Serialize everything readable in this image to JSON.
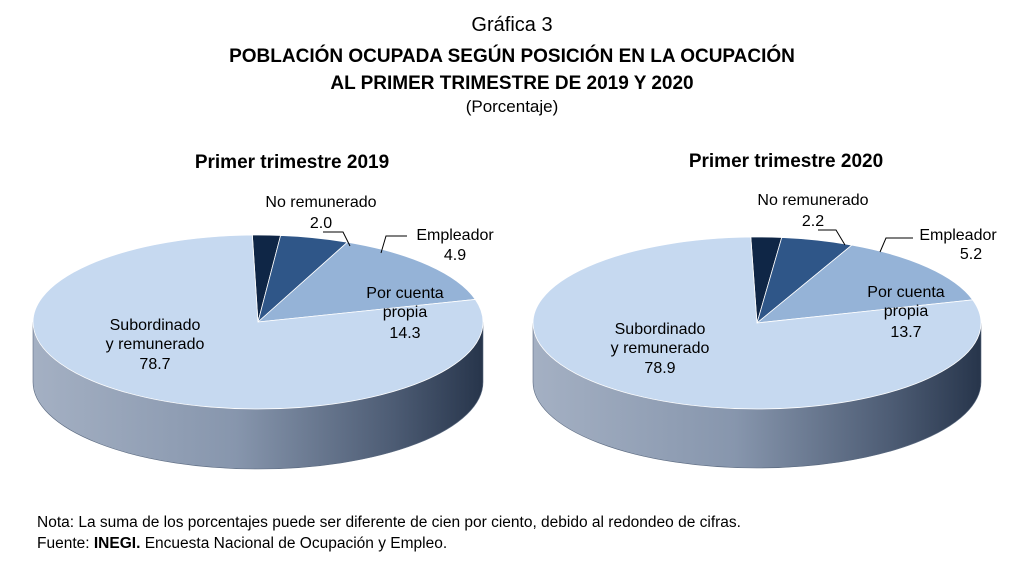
{
  "header": {
    "label": "Gráfica 3",
    "title_line1": "POBLACIÓN OCUPADA SEGÚN POSICIÓN EN LA OCUPACIÓN",
    "title_line2": "AL PRIMER TRIMESTRE DE 2019 Y 2020",
    "subtitle": "(Porcentaje)"
  },
  "chart_data": [
    {
      "type": "pie",
      "title": "Primer trimestre  2019",
      "slices": [
        {
          "name": "No remunerado",
          "label_lines": [
            "No remunerado"
          ],
          "value": 2.0,
          "value_text": "2.0",
          "color": "#0f2646"
        },
        {
          "name": "Empleador",
          "label_lines": [
            "Empleador"
          ],
          "value": 4.9,
          "value_text": "4.9",
          "color": "#2f5688"
        },
        {
          "name": "Por cuenta propia",
          "label_lines": [
            "Por cuenta",
            "propia"
          ],
          "value": 14.3,
          "value_text": "14.3",
          "color": "#95b3d7"
        },
        {
          "name": "Subordinado y remunerado",
          "label_lines": [
            "Subordinado",
            "y remunerado"
          ],
          "value": 78.7,
          "value_text": "78.7",
          "color": "#c6d9f0"
        }
      ]
    },
    {
      "type": "pie",
      "title": "Primer trimestre  2020",
      "slices": [
        {
          "name": "No remunerado",
          "label_lines": [
            "No remunerado"
          ],
          "value": 2.2,
          "value_text": "2.2",
          "color": "#0f2646"
        },
        {
          "name": "Empleador",
          "label_lines": [
            "Empleador"
          ],
          "value": 5.2,
          "value_text": "5.2",
          "color": "#2f5688"
        },
        {
          "name": "Por cuenta propia",
          "label_lines": [
            "Por cuenta",
            "propia"
          ],
          "value": 13.7,
          "value_text": "13.7",
          "color": "#95b3d7"
        },
        {
          "name": "Subordinado y remunerado",
          "label_lines": [
            "Subordinado",
            "y remunerado"
          ],
          "value": 78.9,
          "value_text": "78.9",
          "color": "#c6d9f0"
        }
      ]
    }
  ],
  "footer": {
    "note": "Nota: La suma de los porcentajes puede ser diferente de cien por ciento, debido al redondeo de cifras.",
    "source_prefix": "Fuente: ",
    "source_org": "INEGI.",
    "source_rest": " Encuesta Nacional de Ocupación y Empleo."
  }
}
